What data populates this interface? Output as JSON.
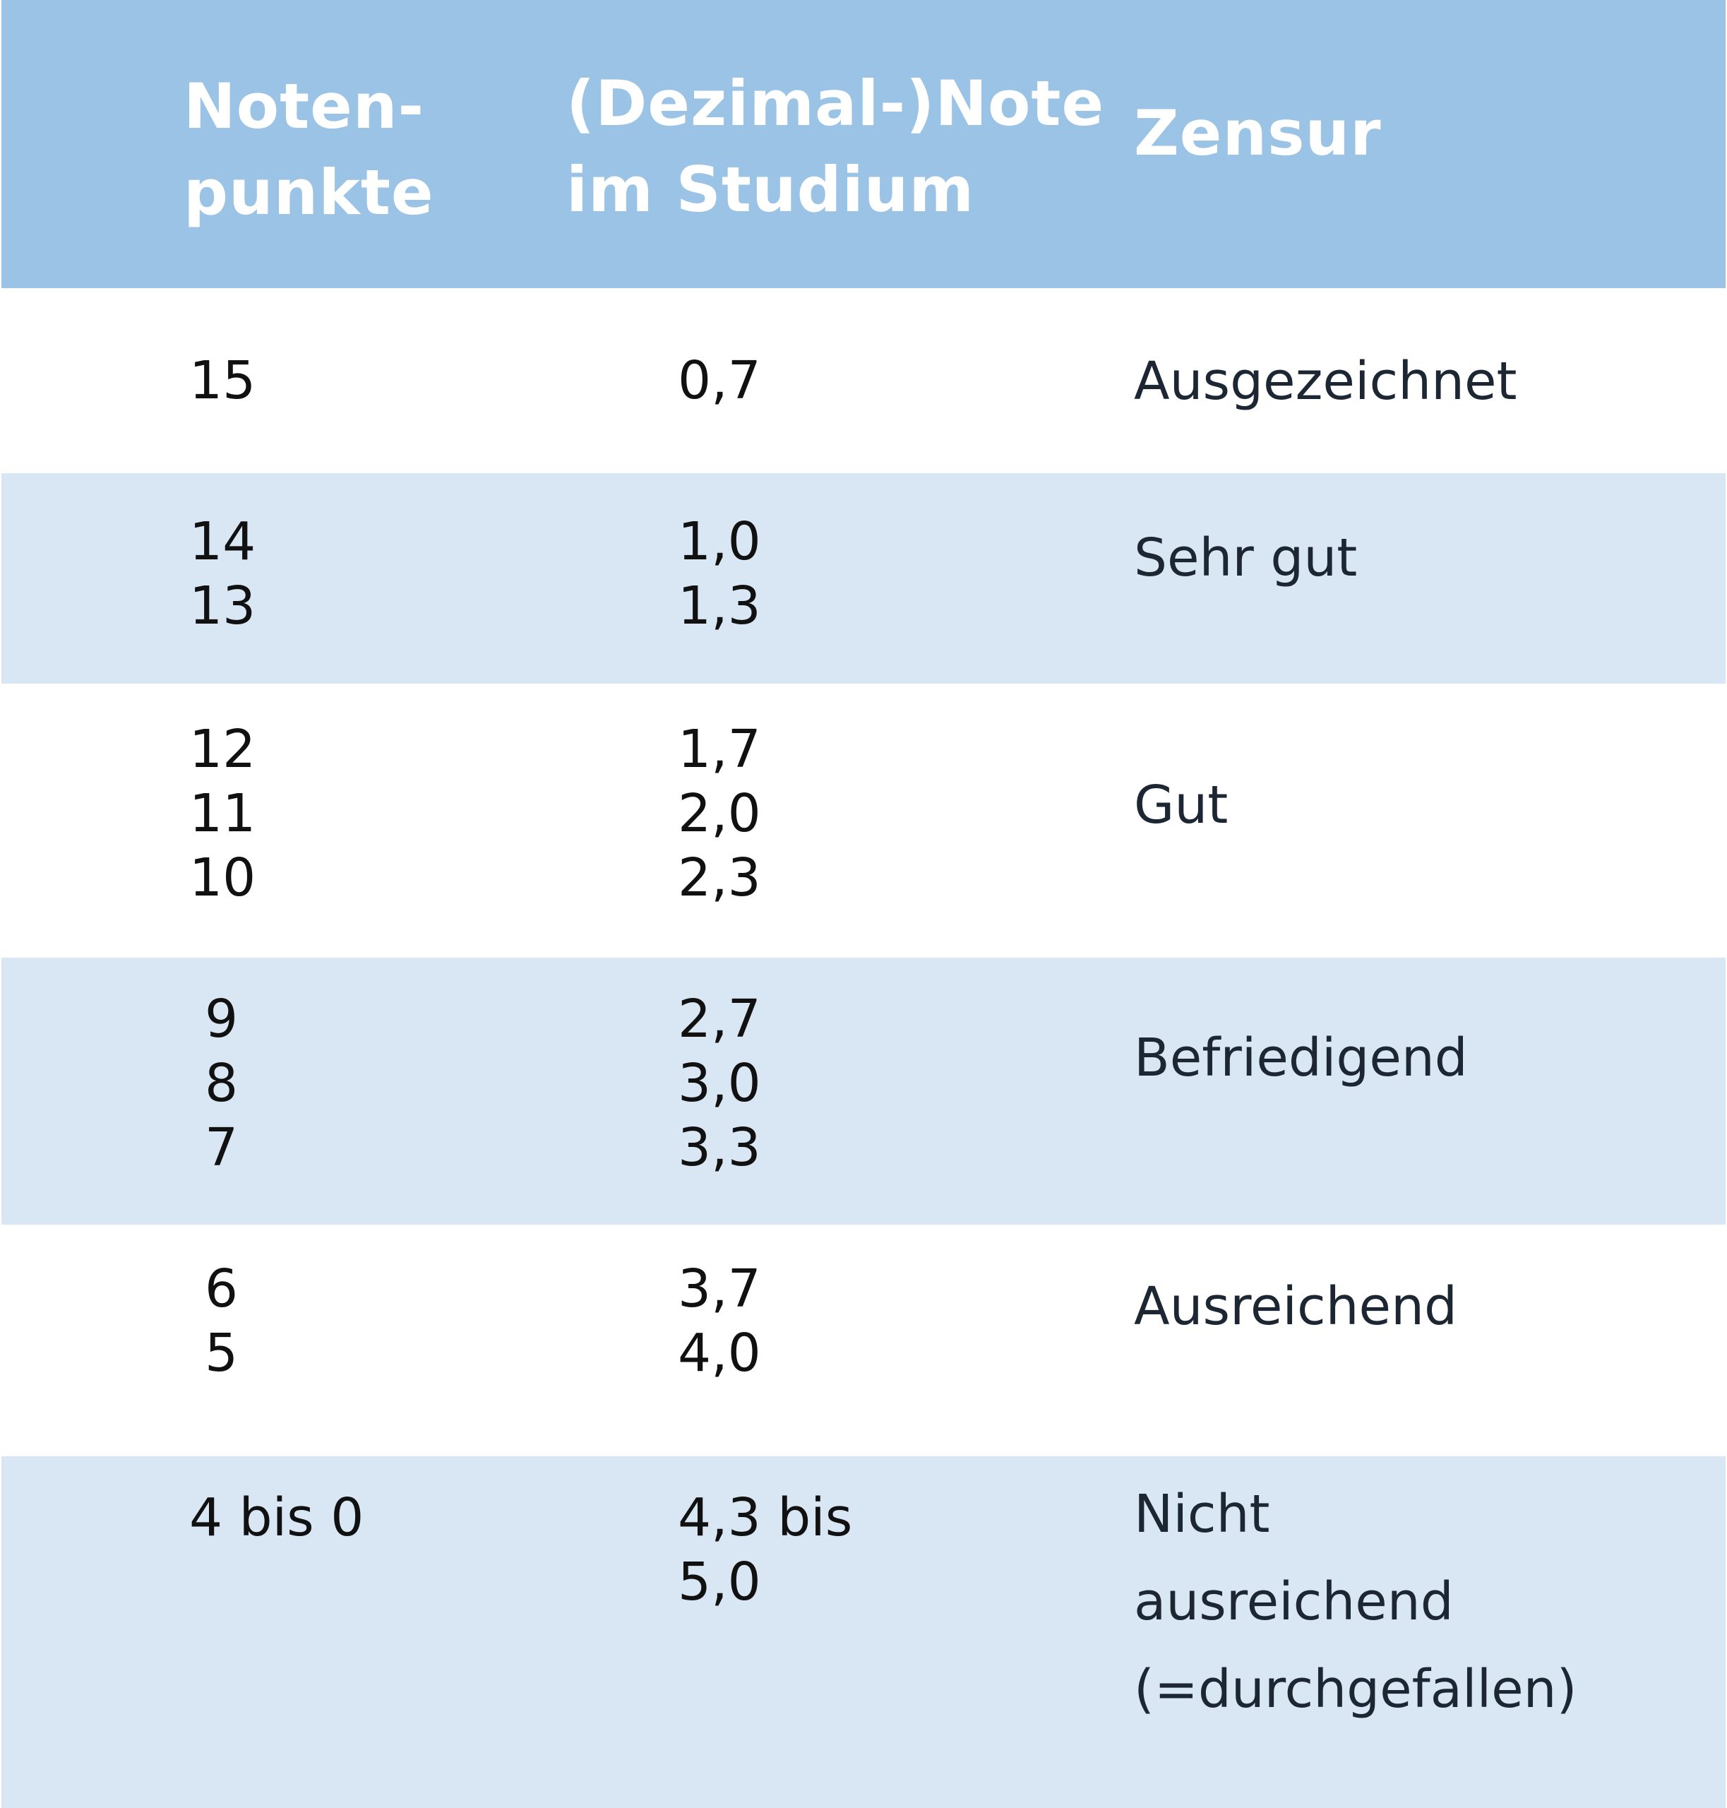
{
  "header": {
    "col1": [
      "Noten-",
      "punkte"
    ],
    "col2": [
      "(Dezimal-)Note",
      "im Studium"
    ],
    "col3": [
      "Zensur"
    ]
  },
  "rows": [
    {
      "punkte": [
        "15"
      ],
      "note": [
        "0,7"
      ],
      "zensur": [
        "Ausgezeichnet"
      ]
    },
    {
      "punkte": [
        "14",
        "13"
      ],
      "note": [
        "1,0",
        "1,3"
      ],
      "zensur": [
        "Sehr gut"
      ]
    },
    {
      "punkte": [
        "12",
        "11",
        "10"
      ],
      "note": [
        "1,7",
        "2,0",
        "2,3"
      ],
      "zensur": [
        "Gut"
      ]
    },
    {
      "punkte": [
        "9",
        "8",
        "7"
      ],
      "note": [
        "2,7",
        "3,0",
        "3,3"
      ],
      "zensur": [
        "Befriedigend"
      ]
    },
    {
      "punkte": [
        "6",
        "5"
      ],
      "note": [
        "3,7",
        "4,0"
      ],
      "zensur": [
        "Ausreichend"
      ]
    },
    {
      "punkte": [
        "4 bis 0"
      ],
      "note": [
        "4,3 bis",
        "5,0"
      ],
      "zensur": [
        "Nicht",
        "ausreichend",
        "(=durchgefallen)"
      ]
    }
  ],
  "colors": {
    "header_bg": "#9ac3e6",
    "row_alt_bg": "#d9e7f4",
    "row_bg": "#ffffff",
    "header_text": "#ffffff"
  }
}
